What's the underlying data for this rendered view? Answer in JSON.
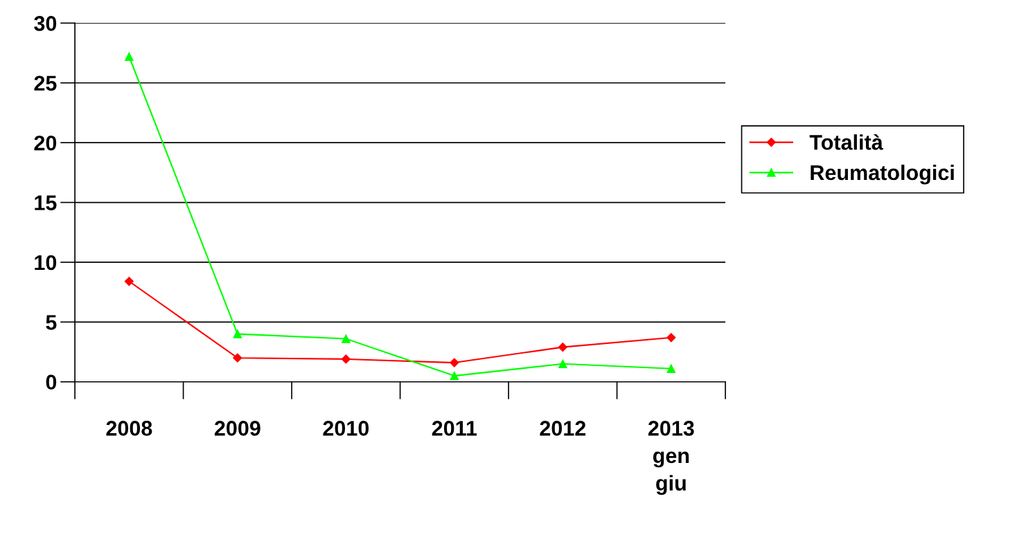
{
  "chart_data": {
    "type": "line",
    "categories": [
      "2008",
      "2009",
      "2010",
      "2011",
      "2012",
      "2013\ngen\ngiu"
    ],
    "series": [
      {
        "name": "Totalità",
        "color": "#ff0000",
        "marker": "diamond",
        "values": [
          8.4,
          2.0,
          1.9,
          1.6,
          2.9,
          3.7
        ]
      },
      {
        "name": "Reumatologici",
        "color": "#00ff00",
        "marker": "triangle",
        "values": [
          27.2,
          4.0,
          3.6,
          0.5,
          1.5,
          1.1
        ]
      }
    ],
    "ylim": [
      0,
      30
    ],
    "yticks": [
      0,
      5,
      10,
      15,
      20,
      25,
      30
    ],
    "grid": "y",
    "legend": "right",
    "line_style": "solid"
  }
}
